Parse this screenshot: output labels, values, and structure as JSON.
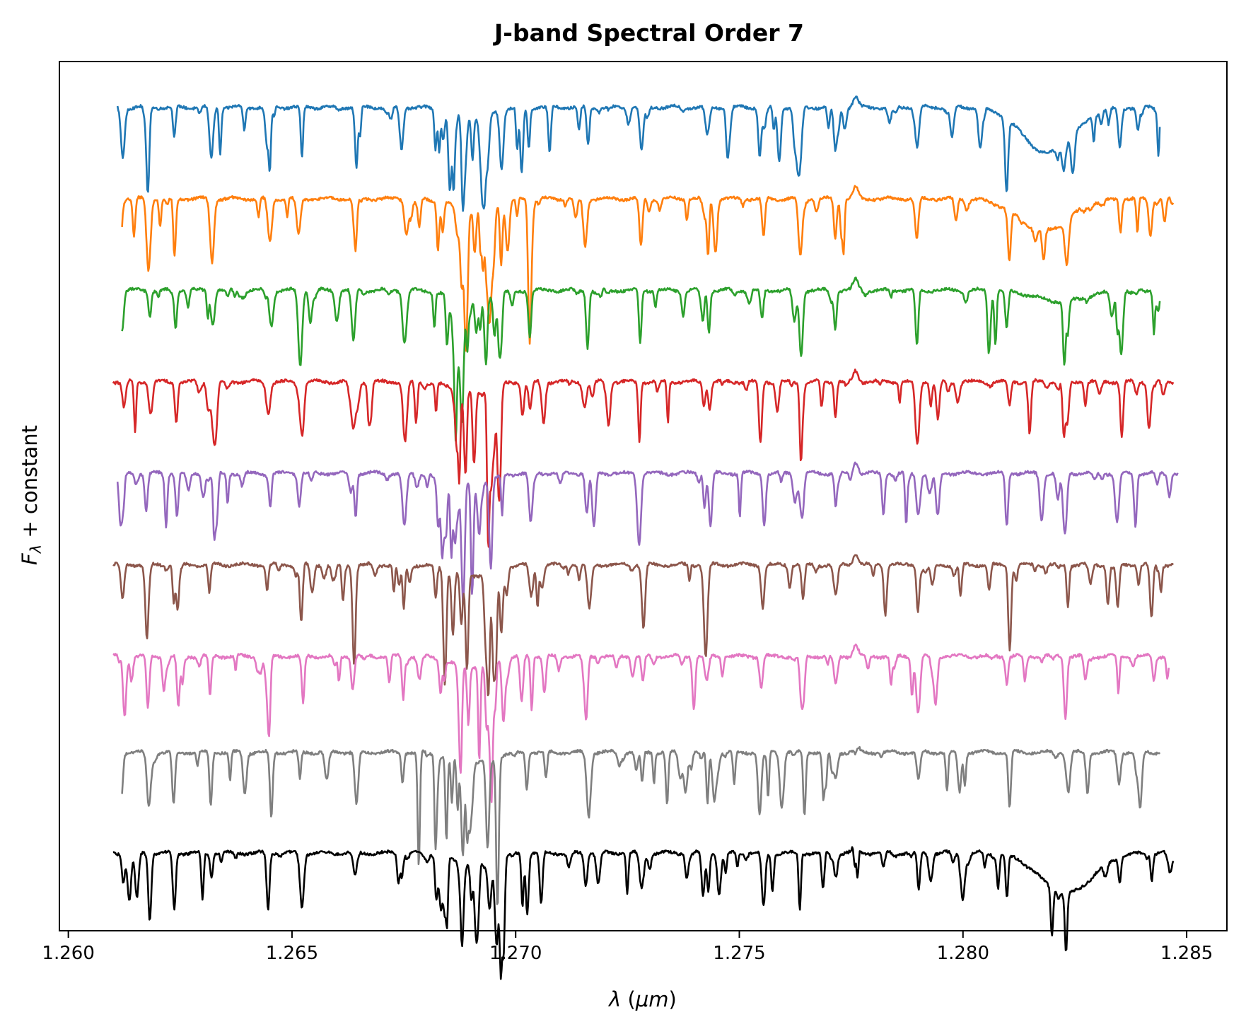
{
  "chart_data": {
    "type": "line",
    "title": "J-band Spectral Order 7",
    "xlabel": {
      "symbol": "λ",
      "unit": "μm"
    },
    "ylabel": {
      "symbol": "F",
      "subscript": "λ",
      "suffix": "+ constant"
    },
    "xlim": [
      1.2598,
      1.2859
    ],
    "xticks": [
      "1.260",
      "1.265",
      "1.270",
      "1.275",
      "1.280",
      "1.285"
    ],
    "xtick_values": [
      1.26,
      1.265,
      1.27,
      1.275,
      1.28,
      1.285
    ],
    "yticks_visible": false,
    "grid": false,
    "legend": "none",
    "common_features": {
      "strong_absorption_band_center_um": 1.2688,
      "emission_bump_um": 1.2776,
      "absorption_lines_um": [
        1.2612,
        1.2618,
        1.2624,
        1.2632,
        1.2645,
        1.2652,
        1.2664,
        1.2675,
        1.2688,
        1.2694,
        1.2703,
        1.2716,
        1.2728,
        1.2743,
        1.2755,
        1.2764,
        1.2771,
        1.279,
        1.281,
        1.2823,
        1.2835
      ]
    },
    "series": [
      {
        "color": "#1f77b4",
        "x_range": [
          1.2611,
          1.2844
        ],
        "baseline": 8.0,
        "broad_dip_um": 1.2819,
        "broad_dip_depth": 0.5
      },
      {
        "color": "#ff7f0e",
        "x_range": [
          1.2612,
          1.2847
        ],
        "baseline": 7.0,
        "broad_dip_um": 1.2818,
        "broad_dip_depth": 0.35
      },
      {
        "color": "#2ca02c",
        "x_range": [
          1.2612,
          1.2844
        ],
        "baseline": 6.0,
        "broad_dip_um": 1.2822,
        "broad_dip_depth": 0.12
      },
      {
        "color": "#d62728",
        "x_range": [
          1.261,
          1.2847
        ],
        "baseline": 5.0,
        "broad_dip_um": null,
        "broad_dip_depth": 0
      },
      {
        "color": "#9467bd",
        "x_range": [
          1.2611,
          1.2848
        ],
        "baseline": 4.0,
        "broad_dip_um": null,
        "broad_dip_depth": 0
      },
      {
        "color": "#8c564b",
        "x_range": [
          1.261,
          1.2847
        ],
        "baseline": 3.0,
        "broad_dip_um": null,
        "broad_dip_depth": 0
      },
      {
        "color": "#e377c2",
        "x_range": [
          1.261,
          1.2846
        ],
        "baseline": 2.0,
        "broad_dip_um": null,
        "broad_dip_depth": 0
      },
      {
        "color": "#7f7f7f",
        "x_range": [
          1.2612,
          1.2844
        ],
        "baseline": 0.95,
        "broad_dip_um": null,
        "broad_dip_depth": 0
      },
      {
        "color": "#000000",
        "x_range": [
          1.261,
          1.2847
        ],
        "baseline": -0.15,
        "broad_dip_um": 1.2823,
        "broad_dip_depth": 0.45
      }
    ],
    "ylim": [
      -1.0,
      8.5
    ]
  }
}
